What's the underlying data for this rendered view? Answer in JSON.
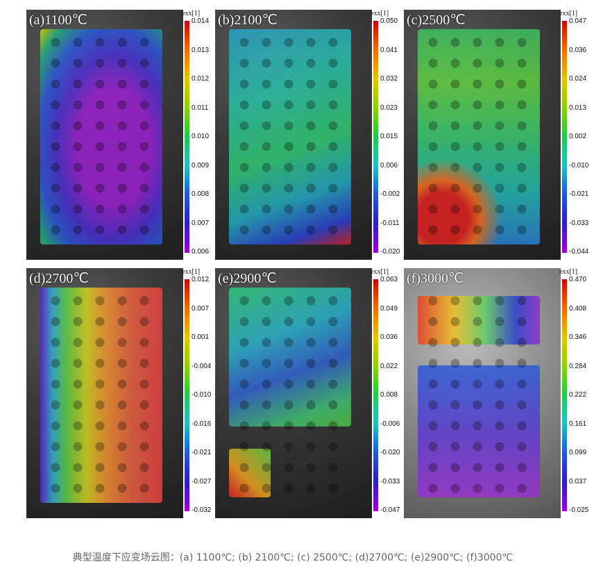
{
  "colorbar_title": "exx[1]",
  "panels": [
    {
      "label": "(a)1100℃",
      "ticks": [
        "0.014",
        "0.013",
        "0.012",
        "0.011",
        "0.010",
        "0.009",
        "0.008",
        "0.007",
        "0.006"
      ]
    },
    {
      "label": "(b)2100℃",
      "ticks": [
        "0.050",
        "0.041",
        "0.032",
        "0.023",
        "0.015",
        "0.006",
        "-0.002",
        "-0.011",
        "-0.020"
      ]
    },
    {
      "label": "(c)2500℃",
      "ticks": [
        "0.047",
        "0.036",
        "0.024",
        "0.013",
        "0.002",
        "-0.010",
        "-0.021",
        "-0.033",
        "-0.044"
      ]
    },
    {
      "label": "(d)2700℃",
      "ticks": [
        "0.012",
        "0.007",
        "0.001",
        "-0.004",
        "-0.010",
        "-0.016",
        "-0.021",
        "-0.027",
        "-0.032"
      ]
    },
    {
      "label": "(e)2900℃",
      "ticks": [
        "0.063",
        "0.049",
        "0.036",
        "0.022",
        "0.008",
        "-0.006",
        "-0.020",
        "-0.033",
        "-0.047"
      ]
    },
    {
      "label": "(f)3000℃",
      "ticks": [
        "0.470",
        "0.408",
        "0.346",
        "0.284",
        "0.222",
        "0.161",
        "0.099",
        "0.037",
        "-0.025"
      ]
    }
  ],
  "caption": "典型温度下应变场云图：(a) 1100℃; (b) 2100℃; (c) 2500℃; (d)2700℃; (e)2900℃; (f)3000℃"
}
